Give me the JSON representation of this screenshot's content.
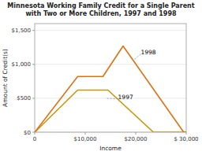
{
  "chart_data": {
    "type": "line",
    "title": "Minnesota Working Family Credit for a Single Parent\nwith Two or More Children, 1997 and 1998",
    "x_label": "Income",
    "y_label": "Amount of Credit(s)",
    "series": [
      {
        "name": "1997",
        "color": "#c8960a",
        "x": [
          0,
          8500,
          14500,
          23500,
          30000
        ],
        "values": [
          0,
          620,
          620,
          0,
          0
        ]
      },
      {
        "name": "1998",
        "color": "#e07010",
        "x": [
          0,
          8500,
          13500,
          17500,
          29500,
          30000
        ],
        "values": [
          0,
          820,
          820,
          1270,
          0,
          0
        ]
      }
    ],
    "xlim": [
      0,
      30000
    ],
    "ylim": [
      0,
      1600
    ],
    "xticks": [
      0,
      {
        "value": 10000,
        "label": "$10,000"
      },
      {
        "value": 20000,
        "label": "$20,000"
      },
      {
        "value": 30000,
        "label": "$ 30,000"
      }
    ],
    "yticks": [
      {
        "value": 0,
        "label": "$0"
      },
      {
        "value": 500,
        "label": "$500"
      },
      {
        "value": 1000,
        "label": "$1,000"
      },
      {
        "value": 1500,
        "label": "$1,500"
      }
    ],
    "grid": true,
    "annotations": [
      {
        "text": "1997",
        "x": 16500,
        "y": 490,
        "point": [
          14000,
          500
        ]
      },
      {
        "text": "1998",
        "x": 21000,
        "y": 1150,
        "point": [
          19500,
          1060
        ]
      }
    ]
  }
}
